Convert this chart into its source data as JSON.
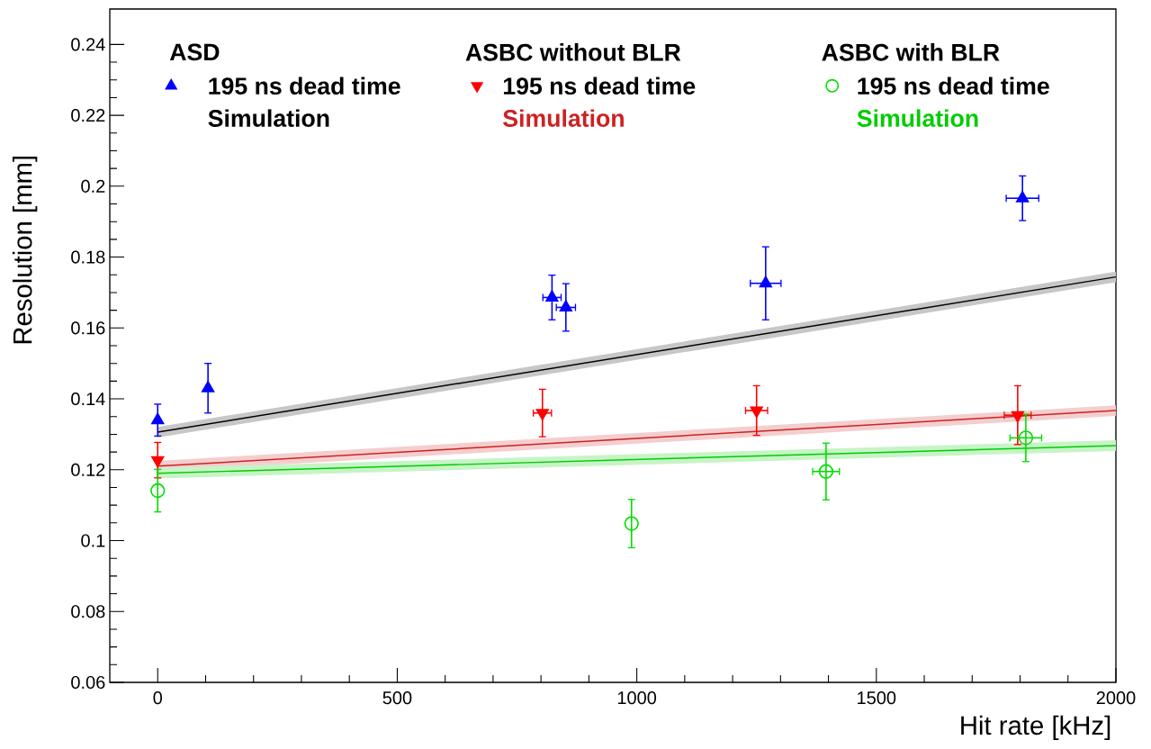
{
  "chart_data": {
    "type": "scatter",
    "xlabel": "Hit rate [kHz]",
    "ylabel": "Resolution [mm]",
    "annotations": [
      "ASD",
      "ASBC without BLR",
      "ASBC with BLR"
    ],
    "xlim": [
      -100,
      2000
    ],
    "ylim": [
      0.06,
      0.25
    ],
    "xticks": [
      0,
      500,
      1000,
      1500,
      2000
    ],
    "yticks": [
      0.06,
      0.08,
      0.1,
      0.12,
      0.14,
      0.16,
      0.18,
      0.2,
      0.22,
      0.24
    ],
    "legend": "top",
    "series": [
      {
        "name": "195 ns dead time",
        "marker": "triangle",
        "color": "#0000ff",
        "x": [
          0,
          105,
          823,
          852,
          1269,
          1805
        ],
        "values": [
          0.134,
          0.143,
          0.1686,
          0.1658,
          0.1726,
          0.1966
        ],
        "errors": [
          0.0045,
          0.007,
          0.0063,
          0.0067,
          0.0103,
          0.0063
        ],
        "xerrors": [
          null,
          null,
          19,
          20,
          32,
          34
        ]
      },
      {
        "name": "Simulation",
        "type": "line",
        "marker": "none",
        "color": "#000000",
        "x": [
          0,
          2000
        ],
        "values": [
          0.1306,
          0.1744
        ],
        "lower": [
          0.1291,
          0.1729
        ],
        "upper": [
          0.1321,
          0.1759
        ]
      },
      {
        "name": "195 ns dead time",
        "marker": "triangle-down",
        "color": "#ff0000",
        "x": [
          0,
          803,
          1250,
          1795
        ],
        "values": [
          0.1227,
          0.136,
          0.1367,
          0.1354
        ],
        "errors": [
          0.005,
          0.0067,
          0.007,
          0.0083
        ],
        "xerrors": [
          null,
          19,
          23,
          28
        ]
      },
      {
        "name": "Simulation",
        "type": "line",
        "marker": "none",
        "color": "#cc2222",
        "x": [
          0,
          2000
        ],
        "values": [
          0.121,
          0.1367
        ],
        "lower": [
          0.1195,
          0.1352
        ],
        "upper": [
          0.1225,
          0.1382
        ]
      },
      {
        "name": "195 ns dead time",
        "marker": "circle",
        "color": "#00dd00",
        "x": [
          0,
          989,
          1395,
          1812
        ],
        "values": [
          0.1141,
          0.1048,
          0.1195,
          0.129
        ],
        "errors": [
          0.006,
          0.0068,
          0.008,
          0.0067
        ],
        "xerrors": [
          null,
          null,
          28,
          33
        ]
      },
      {
        "name": "Simulation",
        "type": "line",
        "marker": "none",
        "color": "#00cc00",
        "x": [
          0,
          2000
        ],
        "values": [
          0.119,
          0.1268
        ],
        "lower": [
          0.1175,
          0.1253
        ],
        "upper": [
          0.1205,
          0.1283
        ]
      }
    ]
  }
}
